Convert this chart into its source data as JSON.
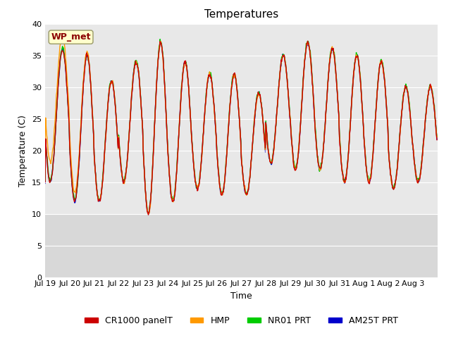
{
  "title": "Temperatures",
  "xlabel": "Time",
  "ylabel": "Temperature (C)",
  "ylim": [
    0,
    40
  ],
  "yticks": [
    0,
    5,
    10,
    15,
    20,
    25,
    30,
    35,
    40
  ],
  "xlabels": [
    "Jul 19",
    "Jul 20",
    "Jul 21",
    "Jul 22",
    "Jul 23",
    "Jul 24",
    "Jul 25",
    "Jul 26",
    "Jul 27",
    "Jul 28",
    "Jul 29",
    "Jul 30",
    "Jul 31",
    "Aug 1",
    "Aug 2",
    "Aug 3"
  ],
  "station_label": "WP_met",
  "series_colors": {
    "CR1000 panelT": "#cc0000",
    "HMP": "#ff9900",
    "NR01 PRT": "#00cc00",
    "AM25T PRT": "#0000cc"
  },
  "fig_bg_color": "#ffffff",
  "plot_bg_color": "#e8e8e8",
  "plot_bg_lower_color": "#d8d8d8",
  "title_fontsize": 11,
  "axis_fontsize": 9,
  "tick_fontsize": 8,
  "legend_fontsize": 9,
  "day_maxs": [
    36,
    35,
    31,
    34,
    37,
    34,
    32,
    32,
    29,
    35,
    37,
    36,
    35,
    34,
    30,
    30
  ],
  "day_mins": [
    15,
    12,
    12,
    15,
    10,
    12,
    14,
    13,
    13,
    18,
    17,
    17,
    15,
    15,
    14,
    15
  ],
  "hmp_offsets": [
    3.5,
    3.5,
    2.0,
    2.0,
    2.0,
    2.0,
    2.0,
    2.0,
    2.0,
    0.5,
    0.5,
    0.5,
    0.5,
    0.5,
    0.5,
    0.5
  ],
  "n_days": 16,
  "n_points_per_day": 48
}
